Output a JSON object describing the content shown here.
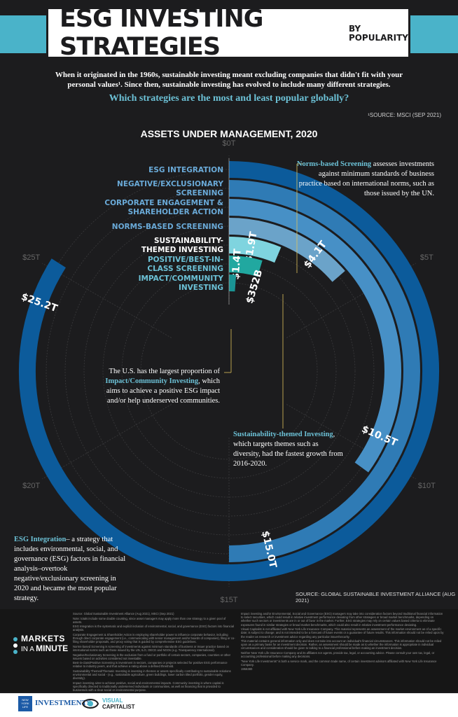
{
  "header": {
    "title": "ESG INVESTING STRATEGIES",
    "by_label": "BY",
    "popularity_label": "POPULARITY",
    "intro_line1": "When it originated in the 1960s, sustainable investing meant excluding companies that didn't fit with your",
    "intro_line2": "personal values¹. Since then, sustainable investing has evolved to include many different strategies.",
    "question": "Which strategies are the most and least popular globally?",
    "source": "¹SOURCE: MSCI (SEP 2021)"
  },
  "chart_data": {
    "type": "radial-bar",
    "title": "ASSETS UNDER MANAGEMENT, 2020",
    "unit": "trillion USD",
    "scale_max": 30,
    "ticks": [
      "$0T",
      "$5T",
      "$10T",
      "$15T",
      "$20T",
      "$25T"
    ],
    "tick_values": [
      0,
      5,
      10,
      15,
      20,
      25
    ],
    "categories": [
      "ESG INTEGRATION",
      "NEGATIVE/EXCLUSIONARY SCREENING",
      "CORPORATE ENGAGEMENT & SHAREHOLDER ACTION",
      "NORMS-BASED SCREENING",
      "SUSTAINABILITY-THEMED INVESTING",
      "POSITIVE/BEST-IN-CLASS SCREENING",
      "IMPACT/COMMUNITY INVESTING"
    ],
    "category_lines": [
      [
        "ESG INTEGRATION"
      ],
      [
        "NEGATIVE/EXCLUSIONARY",
        "SCREENING"
      ],
      [
        "CORPORATE ENGAGEMENT &",
        "SHAREHOLDER ACTION"
      ],
      [
        "NORMS-BASED SCREENING"
      ],
      [
        "SUSTAINABILITY-",
        "THEMED INVESTING"
      ],
      [
        "POSITIVE/BEST-IN-",
        "CLASS SCREENING"
      ],
      [
        "IMPACT/COMMUNITY",
        "INVESTING"
      ]
    ],
    "values": [
      25.2,
      15.0,
      10.5,
      4.1,
      1.9,
      1.4,
      0.352
    ],
    "value_labels": [
      "$25.2T",
      "$15.0T",
      "$10.5T",
      "$4.1T",
      "$1.9T",
      "$1.4T",
      "$352B"
    ],
    "colors": [
      "#0c5b9b",
      "#2f7bb5",
      "#4790c6",
      "#6ba3c9",
      "#7fd4df",
      "#21a8a0",
      "#1a9494"
    ],
    "label_colors": [
      "#6aaad8",
      "#6aaad8",
      "#6aaad8",
      "#6aaad8",
      "#ffffff",
      "#6cc1d6",
      "#6cc1d6"
    ]
  },
  "annotations": {
    "norms": {
      "highlight": "Norms-based Screening",
      "text": " assesses investments against minimum standards of business practice based on international norms, such as those issued by the UN."
    },
    "impact": {
      "pre": "The U.S. has the largest proportion of ",
      "highlight": "Impact/Community Investing",
      "post": ", which aims to achieve a positive ESG impact and/or help underserved communities."
    },
    "themed": {
      "highlight": "Sustainability-themed Investing",
      "text": ", which targets themes such as diversity, had the fastest growth from 2016-2020."
    },
    "esg": {
      "highlight": "ESG Integration",
      "text": "– a strategy that includes environmental, social, and governance (ESG) factors in financial analysis–overtook negative/exclusionary screening in 2020 and became the most popular strategy."
    }
  },
  "chart_source": "SOURCE: GLOBAL SUSTAINABLE INVESTMENT ALLIANCE (AUG 2021)",
  "notes": {
    "left": [
      "Source: Global Sustainable Investment Alliance (Aug 2021), MSCI (Sep 2021)",
      "Note: totals include some double counting, since asset managers may apply more than one strategy to a given pool of assets.",
      "ESG Integration is the systematic and explicit inclusion of environmental, social, and governance (ESG) factors into financial analysis.",
      "Corporate Engagement & Shareholder Action is employing shareholder power to influence corporate behavior, including through direct corporate engagement (i.e., communicating with senior management and/or boards of companies), filing or co-filing shareholder proposals, and proxy voting that is guided by comprehensive ESG guidelines.",
      "Norms-based Screening is screening of investments against minimum standards of business or issuer practice based on international norms such as those issued by the UN, ILO, OECD and NGOs (e.g. Transparency International).",
      "Negative/Exclusionary Screening is the exclusion from a fund or portfolio of certain sectors, companies, countries or other issuers based on activities considered not investable.",
      "Best-in-class/Positive Screening is investment in sectors, companies or projects selected for positive ESG performance relative to industry peers, and that achieve a rating above a defined threshold.",
      "Sustainability Themed/Thematic Investing is investing in themes or assets specifically contributing to sustainable solutions environmental and social - (e.g., sustainable agriculture, green buildings, lower carbon tilted portfolio, gender equity, diversity).",
      "Impact investing aims to achieve positive, social and environmental impacts. Community investing is where capital is specifically directed to traditionally underserved individuals or communities, as well as financing that is provided to businesses with a clear social or environmental purpose."
    ],
    "right": [
      "Impact investing and/or Environmental, Social and Governance (ESG) managers may take into consideration factors beyond traditional financial information to select securities, which could result in relative investment performance deviating from other strategies or broad market benchmarks, depending on whether such sectors or investments are in or out of favor in the market. Further, ESG strategies may rely on certain values based criteria to eliminate exposures found in similar strategies or broad market benchmarks, which could also result in relative investment performance deviating.",
      "Visual Capitalist is not affiliated with New York Life Insurance Company. This material represents an assessment of the market environment as of a specific date; is subject to change; and is not intended to be a forecast of future events or a guarantee of future results. This information should not be relied upon by the reader as research or investment advice regarding any particular issuer/security.",
      "This material contains general information only and does not take into account an individual's financial circumstances. This information should not be relied upon as a primary basis for an investment decision. Rather, an assessment should be made as to whether the information is appropriate in individual circumstances and consideration should be given to talking to a financial professional before making an investment decision.",
      "Neither New York Life Insurance Company and its affiliates nor agents, provide tax, legal, or accounting advice. Please consult your own tax, legal, or accounting professional before making any decisions.",
      "\"New York Life Investments\" is both a service mark, and the common trade name, of certain investment advisors affiliated with New York Life Insurance Company.",
      "1956380"
    ]
  },
  "branding": {
    "mim_line1": "MARKETS",
    "mim_in": "IN A",
    "mim_minute": "MINUTE",
    "ny_logo": "NEW YORK LIFE",
    "investments": "INVESTMENTS",
    "vc_line1": "VISUAL",
    "vc_line2": "CAPITALIST"
  }
}
